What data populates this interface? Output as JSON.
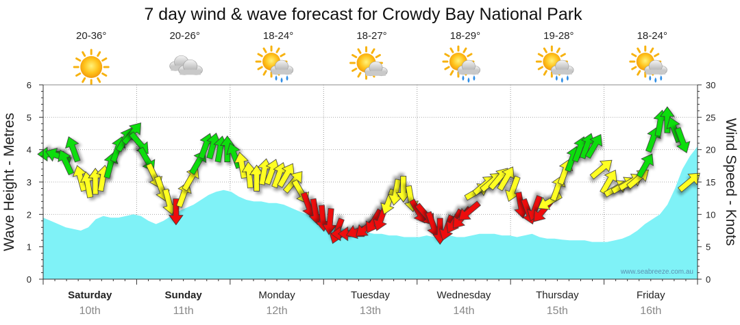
{
  "chart_data": {
    "type": "area+arrows",
    "title": "7 day wind & wave forecast for Crowdy Bay National Park",
    "ylabel_left": "Wave Height - Metres",
    "ylabel_right": "Wind Speed - Knots",
    "ylim_left": [
      0,
      6
    ],
    "ylim_right": [
      0,
      30
    ],
    "yticks_left": [
      "0",
      "1",
      "2",
      "3",
      "4",
      "5",
      "6"
    ],
    "yticks_right": [
      "0",
      "5",
      "10",
      "15",
      "20",
      "25",
      "30"
    ],
    "watermark": "www.seabreeze.com.au",
    "days": [
      {
        "name": "Saturday",
        "date": "10th",
        "temp": "20-36°",
        "weather": "sunny",
        "bold": true
      },
      {
        "name": "Sunday",
        "date": "11th",
        "temp": "20-26°",
        "weather": "cloudy",
        "bold": true
      },
      {
        "name": "Monday",
        "date": "12th",
        "temp": "18-24°",
        "weather": "sun-cloud-rain",
        "bold": false
      },
      {
        "name": "Tuesday",
        "date": "13th",
        "temp": "18-27°",
        "weather": "sun-cloud",
        "bold": false
      },
      {
        "name": "Wednesday",
        "date": "14th",
        "temp": "18-29°",
        "weather": "sun-cloud-rain",
        "bold": false
      },
      {
        "name": "Thursday",
        "date": "15th",
        "temp": "19-28°",
        "weather": "sun-cloud-rain",
        "bold": false
      },
      {
        "name": "Friday",
        "date": "16th",
        "temp": "18-24°",
        "weather": "sun-cloud-rain",
        "bold": false
      }
    ],
    "wave_height_m": [
      1.9,
      1.8,
      1.7,
      1.6,
      1.55,
      1.5,
      1.6,
      1.85,
      1.95,
      1.9,
      1.9,
      1.95,
      2.0,
      1.95,
      1.8,
      1.7,
      1.8,
      1.95,
      2.1,
      2.2,
      2.3,
      2.45,
      2.6,
      2.7,
      2.75,
      2.7,
      2.55,
      2.45,
      2.4,
      2.4,
      2.35,
      2.35,
      2.3,
      2.2,
      2.1,
      2.0,
      1.9,
      1.8,
      1.7,
      1.6,
      1.55,
      1.5,
      1.45,
      1.45,
      1.4,
      1.4,
      1.35,
      1.35,
      1.3,
      1.3,
      1.3,
      1.35,
      1.3,
      1.3,
      1.35,
      1.3,
      1.3,
      1.35,
      1.4,
      1.4,
      1.4,
      1.35,
      1.35,
      1.3,
      1.35,
      1.4,
      1.3,
      1.25,
      1.25,
      1.22,
      1.2,
      1.2,
      1.2,
      1.15,
      1.15,
      1.15,
      1.2,
      1.25,
      1.35,
      1.5,
      1.7,
      1.85,
      2.0,
      2.3,
      2.8,
      3.4,
      3.8,
      4.1
    ],
    "wind_color_legend": {
      "green": "#11dd11",
      "yellow": "#ffff22",
      "red": "#ee1111"
    },
    "wind": [
      {
        "k": 19.3,
        "d": 270,
        "c": "g"
      },
      {
        "k": 19.0,
        "d": 290,
        "c": "g"
      },
      {
        "k": 18.0,
        "d": 335,
        "c": "g"
      },
      {
        "k": 20.0,
        "d": 340,
        "c": "g"
      },
      {
        "k": 15.5,
        "d": 345,
        "c": "y"
      },
      {
        "k": 14.5,
        "d": 350,
        "c": "y"
      },
      {
        "k": 15.0,
        "d": 0,
        "c": "y"
      },
      {
        "k": 15.5,
        "d": 10,
        "c": "y"
      },
      {
        "k": 17.5,
        "d": 15,
        "c": "g"
      },
      {
        "k": 20.0,
        "d": 20,
        "c": "g"
      },
      {
        "k": 21.5,
        "d": 30,
        "c": "g"
      },
      {
        "k": 22.5,
        "d": 40,
        "c": "g"
      },
      {
        "k": 21.0,
        "d": 140,
        "c": "g"
      },
      {
        "k": 18.5,
        "d": 150,
        "c": "g"
      },
      {
        "k": 16.0,
        "d": 155,
        "c": "y"
      },
      {
        "k": 14.0,
        "d": 160,
        "c": "y"
      },
      {
        "k": 12.0,
        "d": 165,
        "c": "y"
      },
      {
        "k": 10.5,
        "d": 180,
        "c": "r"
      },
      {
        "k": 13.0,
        "d": 20,
        "c": "y"
      },
      {
        "k": 15.5,
        "d": 30,
        "c": "y"
      },
      {
        "k": 18.0,
        "d": 30,
        "c": "g"
      },
      {
        "k": 20.5,
        "d": 20,
        "c": "g"
      },
      {
        "k": 20.5,
        "d": 15,
        "c": "g"
      },
      {
        "k": 20.0,
        "d": 10,
        "c": "g"
      },
      {
        "k": 20.0,
        "d": 0,
        "c": "g"
      },
      {
        "k": 19.0,
        "d": 340,
        "c": "g"
      },
      {
        "k": 17.5,
        "d": 350,
        "c": "y"
      },
      {
        "k": 16.0,
        "d": 355,
        "c": "y"
      },
      {
        "k": 15.5,
        "d": 0,
        "c": "y"
      },
      {
        "k": 16.5,
        "d": 10,
        "c": "y"
      },
      {
        "k": 16.5,
        "d": 20,
        "c": "y"
      },
      {
        "k": 16.0,
        "d": 20,
        "c": "y"
      },
      {
        "k": 16.0,
        "d": 30,
        "c": "y"
      },
      {
        "k": 15.0,
        "d": 40,
        "c": "y"
      },
      {
        "k": 13.5,
        "d": 150,
        "c": "y"
      },
      {
        "k": 11.5,
        "d": 160,
        "c": "r"
      },
      {
        "k": 10.5,
        "d": 170,
        "c": "r"
      },
      {
        "k": 9.5,
        "d": 175,
        "c": "r"
      },
      {
        "k": 9.0,
        "d": 185,
        "c": "r"
      },
      {
        "k": 7.5,
        "d": 200,
        "c": "r"
      },
      {
        "k": 7.0,
        "d": 270,
        "c": "r"
      },
      {
        "k": 7.0,
        "d": 270,
        "c": "r"
      },
      {
        "k": 7.5,
        "d": 250,
        "c": "r"
      },
      {
        "k": 8.0,
        "d": 230,
        "c": "r"
      },
      {
        "k": 9.0,
        "d": 210,
        "c": "r"
      },
      {
        "k": 9.5,
        "d": 200,
        "c": "r"
      },
      {
        "k": 12.0,
        "d": 200,
        "c": "y"
      },
      {
        "k": 13.5,
        "d": 190,
        "c": "y"
      },
      {
        "k": 14.0,
        "d": 180,
        "c": "y"
      },
      {
        "k": 12.5,
        "d": 170,
        "c": "y"
      },
      {
        "k": 10.5,
        "d": 150,
        "c": "r"
      },
      {
        "k": 10.0,
        "d": 140,
        "c": "r"
      },
      {
        "k": 8.5,
        "d": 160,
        "c": "r"
      },
      {
        "k": 7.5,
        "d": 180,
        "c": "r"
      },
      {
        "k": 8.0,
        "d": 200,
        "c": "r"
      },
      {
        "k": 9.0,
        "d": 210,
        "c": "r"
      },
      {
        "k": 9.5,
        "d": 220,
        "c": "r"
      },
      {
        "k": 10.5,
        "d": 230,
        "c": "r"
      },
      {
        "k": 13.5,
        "d": 60,
        "c": "y"
      },
      {
        "k": 14.5,
        "d": 50,
        "c": "y"
      },
      {
        "k": 15.0,
        "d": 50,
        "c": "y"
      },
      {
        "k": 15.5,
        "d": 40,
        "c": "y"
      },
      {
        "k": 15.5,
        "d": 30,
        "c": "y"
      },
      {
        "k": 14.0,
        "d": 200,
        "c": "y"
      },
      {
        "k": 11.5,
        "d": 170,
        "c": "r"
      },
      {
        "k": 10.5,
        "d": 160,
        "c": "r"
      },
      {
        "k": 11.0,
        "d": 200,
        "c": "r"
      },
      {
        "k": 10.5,
        "d": 220,
        "c": "r"
      },
      {
        "k": 12.0,
        "d": 240,
        "c": "y"
      },
      {
        "k": 14.0,
        "d": 20,
        "c": "y"
      },
      {
        "k": 16.5,
        "d": 20,
        "c": "y"
      },
      {
        "k": 18.5,
        "d": 20,
        "c": "g"
      },
      {
        "k": 20.0,
        "d": 20,
        "c": "g"
      },
      {
        "k": 20.5,
        "d": 20,
        "c": "g"
      },
      {
        "k": 20.5,
        "d": 30,
        "c": "g"
      },
      {
        "k": 17.0,
        "d": 50,
        "c": "y"
      },
      {
        "k": 15.0,
        "d": 30,
        "c": "y"
      },
      {
        "k": 14.0,
        "d": 60,
        "c": "y"
      },
      {
        "k": 14.5,
        "d": 60,
        "c": "y"
      },
      {
        "k": 15.0,
        "d": 60,
        "c": "y"
      },
      {
        "k": 15.5,
        "d": 50,
        "c": "y"
      },
      {
        "k": 17.5,
        "d": 30,
        "c": "g"
      },
      {
        "k": 21.5,
        "d": 20,
        "c": "g"
      },
      {
        "k": 24.0,
        "d": 10,
        "c": "g"
      },
      {
        "k": 24.5,
        "d": 0,
        "c": "g"
      },
      {
        "k": 23.0,
        "d": 340,
        "c": "g"
      },
      {
        "k": 21.5,
        "d": 160,
        "c": "g"
      },
      {
        "k": 15.0,
        "d": 50,
        "c": "y"
      }
    ]
  }
}
